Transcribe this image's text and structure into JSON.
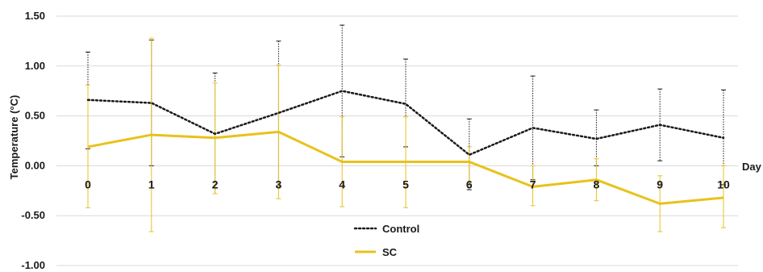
{
  "chart_data": {
    "type": "line",
    "title": "",
    "xlabel": "Day",
    "ylabel": "Temperature (°C)",
    "ylim": [
      -1.0,
      1.5
    ],
    "yticks": [
      "1.50",
      "1.00",
      "0.50",
      "0.00",
      "-0.50",
      "-1.00"
    ],
    "ytick_values": [
      1.5,
      1.0,
      0.5,
      0.0,
      -0.5,
      -1.0
    ],
    "categories": [
      "0",
      "1",
      "2",
      "3",
      "4",
      "5",
      "6",
      "7",
      "8",
      "9",
      "10"
    ],
    "grid": "horizontal",
    "legend_position": "bottom-center",
    "series": [
      {
        "name": "Control",
        "style": "dotted",
        "color": "#1a1a1a",
        "values": [
          0.66,
          0.63,
          0.32,
          0.53,
          0.75,
          0.62,
          0.11,
          0.38,
          0.27,
          0.41,
          0.28
        ],
        "err_high": [
          1.14,
          1.26,
          0.93,
          1.25,
          1.41,
          1.07,
          0.47,
          0.9,
          0.56,
          0.77,
          0.76
        ],
        "err_low": [
          0.17,
          0.0,
          -0.28,
          -0.2,
          0.09,
          0.19,
          -0.24,
          -0.14,
          0.0,
          0.05,
          -0.19
        ]
      },
      {
        "name": "SC",
        "style": "solid",
        "color": "#e8c21c",
        "values": [
          0.19,
          0.31,
          0.28,
          0.34,
          0.04,
          0.04,
          0.04,
          -0.21,
          -0.14,
          -0.38,
          -0.32
        ],
        "err_high": [
          0.81,
          1.28,
          0.83,
          1.01,
          0.49,
          0.49,
          0.19,
          0.0,
          0.07,
          -0.1,
          0.0
        ],
        "err_low": [
          -0.42,
          -0.66,
          -0.28,
          -0.33,
          -0.41,
          -0.42,
          -0.17,
          -0.4,
          -0.35,
          -0.66,
          -0.62
        ]
      }
    ]
  }
}
